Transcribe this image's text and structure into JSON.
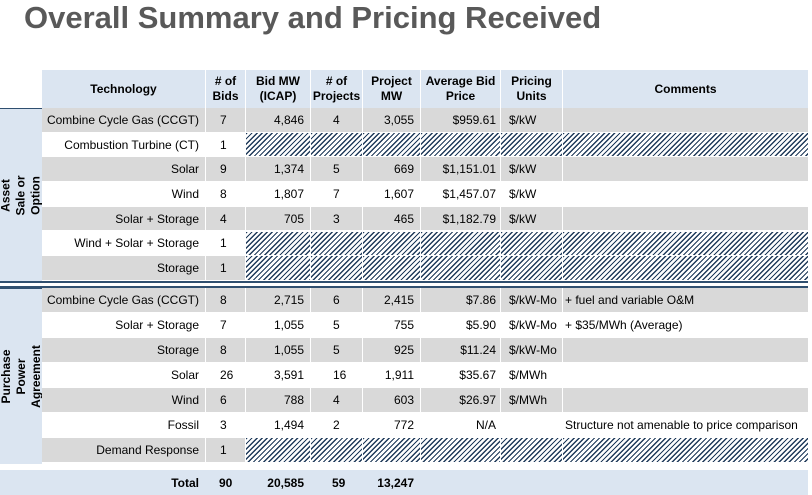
{
  "title": "Overall Summary and Pricing Received",
  "table": {
    "headers": {
      "technology": "Technology",
      "bids": "# of Bids",
      "bid_mw": "Bid MW (ICAP)",
      "projects": "# of Projects",
      "project_mw": "Project MW",
      "price": "Average Bid Price",
      "units": "Pricing Units",
      "comments": "Comments"
    },
    "groups": [
      {
        "label": "Asset Sale or Option",
        "rows": [
          {
            "technology": "Combine Cycle Gas (CCGT)",
            "bids": "7",
            "bid_mw": "4,846",
            "projects": "4",
            "project_mw": "3,055",
            "price": "$959.61",
            "units": "$/kW"
          },
          {
            "technology": "Combustion Turbine (CT)",
            "bids": "1",
            "hatched": true
          },
          {
            "technology": "Solar",
            "bids": "9",
            "bid_mw": "1,374",
            "projects": "5",
            "project_mw": "669",
            "price": "$1,151.01",
            "units": "$/kW"
          },
          {
            "technology": "Wind",
            "bids": "8",
            "bid_mw": "1,807",
            "projects": "7",
            "project_mw": "1,607",
            "price": "$1,457.07",
            "units": "$/kW"
          },
          {
            "technology": "Solar + Storage",
            "bids": "4",
            "bid_mw": "705",
            "projects": "3",
            "project_mw": "465",
            "price": "$1,182.79",
            "units": "$/kW"
          },
          {
            "technology": "Wind + Solar + Storage",
            "bids": "1",
            "hatched": true
          },
          {
            "technology": "Storage",
            "bids": "1",
            "hatched": true
          }
        ]
      },
      {
        "label": "Purchase Power Agreement",
        "rows": [
          {
            "technology": "Combine Cycle Gas (CCGT)",
            "bids": "8",
            "bid_mw": "2,715",
            "projects": "6",
            "project_mw": "2,415",
            "price": "$7.86",
            "units": "$/kW-Mo",
            "comments": "+ fuel and variable O&M"
          },
          {
            "technology": "Solar + Storage",
            "bids": "7",
            "bid_mw": "1,055",
            "projects": "5",
            "project_mw": "755",
            "price": "$5.90",
            "units": "$/kW-Mo",
            "comments": "+ $35/MWh (Average)"
          },
          {
            "technology": "Storage",
            "bids": "8",
            "bid_mw": "1,055",
            "projects": "5",
            "project_mw": "925",
            "price": "$11.24",
            "units": "$/kW-Mo"
          },
          {
            "technology": "Solar",
            "bids": "26",
            "bid_mw": "3,591",
            "projects": "16",
            "project_mw": "1,911",
            "price": "$35.67",
            "units": "$/MWh"
          },
          {
            "technology": "Wind",
            "bids": "6",
            "bid_mw": "788",
            "projects": "4",
            "project_mw": "603",
            "price": "$26.97",
            "units": "$/MWh"
          },
          {
            "technology": "Fossil",
            "bids": "3",
            "bid_mw": "1,494",
            "projects": "2",
            "project_mw": "772",
            "price": "N/A",
            "comments": "Structure not amenable to price comparison"
          },
          {
            "technology": "Demand Response",
            "bids": "1",
            "hatched": true
          }
        ]
      }
    ],
    "total": {
      "technology": "Total",
      "bids": "90",
      "bid_mw": "20,585",
      "projects": "59",
      "project_mw": "13,247"
    }
  }
}
